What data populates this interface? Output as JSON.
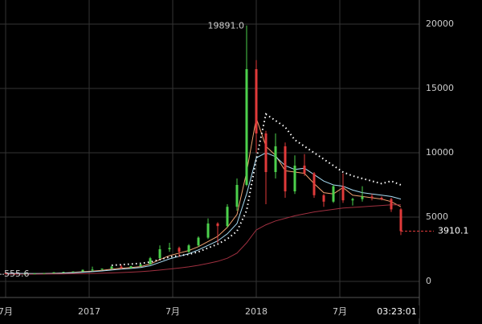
{
  "chart_data": {
    "type": "candlestick",
    "x": [
      0,
      3,
      6,
      9,
      12,
      15,
      18,
      21,
      24,
      27,
      30,
      33,
      36,
      39,
      42,
      45,
      48,
      51,
      54,
      57,
      60,
      63,
      66,
      69,
      72,
      75,
      78,
      81,
      84,
      87,
      90,
      93,
      96,
      99,
      102,
      105,
      108,
      111,
      114,
      117,
      120,
      123
    ],
    "open": [
      640,
      600,
      580,
      610,
      620,
      640,
      710,
      740,
      770,
      900,
      920,
      990,
      1150,
      1050,
      1180,
      1320,
      1800,
      2500,
      2600,
      2300,
      2800,
      3400,
      4500,
      4300,
      5800,
      7500,
      16500,
      11500,
      8500,
      10500,
      7000,
      9000,
      8400,
      6700,
      6200,
      7400,
      6300,
      6400,
      6600,
      6500,
      6400,
      5600
    ],
    "high": [
      680,
      620,
      620,
      640,
      660,
      720,
      750,
      780,
      920,
      1150,
      1000,
      1200,
      1290,
      1200,
      1350,
      1900,
      2800,
      3000,
      2700,
      2900,
      3500,
      4900,
      4600,
      6000,
      8000,
      19891,
      17200,
      11700,
      11500,
      10800,
      9800,
      9900,
      8500,
      6800,
      7500,
      8400,
      6500,
      7400,
      6800,
      6600,
      6500,
      5700
    ],
    "low": [
      580,
      560,
      570,
      590,
      600,
      630,
      690,
      720,
      760,
      780,
      880,
      960,
      950,
      1000,
      1150,
      1300,
      1750,
      2300,
      1900,
      2200,
      2700,
      3300,
      3000,
      4200,
      5500,
      7400,
      10000,
      6000,
      8000,
      6500,
      6800,
      8200,
      6500,
      5800,
      6100,
      6100,
      5900,
      6200,
      6300,
      6300,
      5400,
      3600
    ],
    "close": [
      600,
      580,
      610,
      620,
      640,
      710,
      740,
      770,
      900,
      920,
      990,
      1150,
      1050,
      1180,
      1320,
      1800,
      2500,
      2600,
      2300,
      2800,
      3400,
      4500,
      4300,
      5800,
      7500,
      16500,
      11500,
      8500,
      10500,
      7000,
      9000,
      8400,
      6700,
      6200,
      7400,
      6300,
      6400,
      6600,
      6500,
      6400,
      5600,
      3910.1
    ],
    "up_color": "#4cd04c",
    "down_color": "#e03a3a",
    "series": [
      {
        "color": "#f0a070",
        "style": "solid",
        "values": [
          620,
          610,
          600,
          600,
          610,
          630,
          660,
          700,
          750,
          800,
          860,
          950,
          1020,
          1080,
          1150,
          1350,
          1700,
          2000,
          2200,
          2400,
          2700,
          3100,
          3500,
          4200,
          5200,
          8500,
          12700,
          10500,
          9800,
          8600,
          8500,
          8400,
          7600,
          6900,
          6800,
          7300,
          6700,
          6600,
          6500,
          6400,
          6200,
          5800
        ]
      },
      {
        "color": "#a8dcf4",
        "style": "solid",
        "values": [
          630,
          625,
          615,
          610,
          610,
          620,
          640,
          670,
          710,
          760,
          810,
          880,
          950,
          1010,
          1080,
          1220,
          1480,
          1750,
          1950,
          2150,
          2450,
          2800,
          3150,
          3700,
          4500,
          6800,
          9600,
          10000,
          9700,
          9000,
          8700,
          8800,
          8300,
          7800,
          7500,
          7400,
          7100,
          6900,
          6800,
          6700,
          6600,
          6400
        ]
      },
      {
        "color": "#ffffff",
        "style": "dotted",
        "values": [
          null,
          null,
          null,
          null,
          null,
          null,
          null,
          null,
          null,
          null,
          null,
          1250,
          1300,
          1350,
          1400,
          1500,
          1700,
          1900,
          2000,
          2100,
          2300,
          2600,
          2900,
          3300,
          3900,
          5500,
          9500,
          13000,
          12500,
          12000,
          11000,
          10500,
          10000,
          9500,
          9000,
          8500,
          8200,
          8000,
          7800,
          7600,
          7800,
          7500
        ]
      },
      {
        "color": "#a03040",
        "style": "solid",
        "values": [
          560,
          560,
          560,
          565,
          570,
          575,
          580,
          590,
          600,
          620,
          640,
          660,
          690,
          720,
          760,
          810,
          880,
          960,
          1040,
          1130,
          1250,
          1400,
          1560,
          1800,
          2200,
          3000,
          4000,
          4400,
          4700,
          4900,
          5100,
          5250,
          5400,
          5500,
          5600,
          5700,
          5750,
          5800,
          5850,
          5900,
          5950,
          5950
        ]
      }
    ],
    "xlim": [
      -1.75,
      128.75
    ],
    "xticks": [
      {
        "value": 0,
        "label": "7月"
      },
      {
        "value": 26,
        "label": "2017"
      },
      {
        "value": 52,
        "label": "7月"
      },
      {
        "value": 78,
        "label": "2018"
      },
      {
        "value": 104,
        "label": "7月"
      }
    ],
    "ylim": [
      -1250,
      21875
    ],
    "yticks": [
      0,
      5000,
      10000,
      15000,
      20000
    ],
    "grid": true,
    "peak_label": {
      "value": 19891,
      "label": "19891.0"
    },
    "last_price": 3910.1,
    "min_price": 555.6,
    "countdown": "03:23:01"
  }
}
